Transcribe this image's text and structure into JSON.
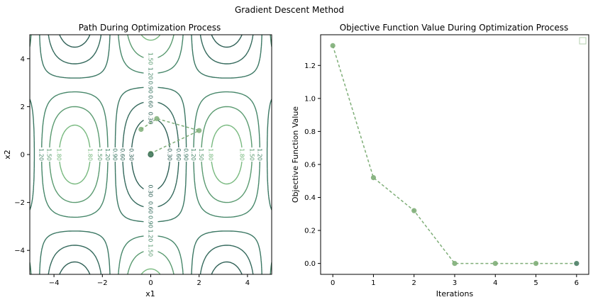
{
  "suptitle": "Gradient Descent Method",
  "chart_data": [
    {
      "type": "contour",
      "title": "Path During Optimization Process",
      "xlabel": "x1",
      "ylabel": "x2",
      "xlim": [
        -5,
        5
      ],
      "ylim": [
        -5,
        5
      ],
      "xticks": [
        "−4",
        "−2",
        "0",
        "2",
        "4"
      ],
      "yticks": [
        "−4",
        "−2",
        "0",
        "2",
        "4"
      ],
      "contour_levels": [
        "0.30",
        "0.60",
        "0.90",
        "1.20",
        "1.50",
        "1.80"
      ],
      "contour_colors": [
        "#2e5f55",
        "#34695c",
        "#3b7763",
        "#47876a",
        "#5a9a70",
        "#78b97f"
      ],
      "path_color": "#7fae78",
      "path": {
        "x": [
          -0.4,
          0.25,
          2.0,
          0.0,
          0.0,
          0.0,
          0.0
        ],
        "y": [
          1.05,
          1.5,
          1.0,
          0.05,
          0.0,
          0.0,
          0.0
        ]
      }
    },
    {
      "type": "line",
      "title": "Objective Function Value During Optimization Process",
      "xlabel": "Iterations",
      "ylabel": "Objective Function Value",
      "x": [
        0,
        1,
        2,
        3,
        4,
        5,
        6
      ],
      "values": [
        1.32,
        0.52,
        0.32,
        0.0,
        0.0,
        0.0,
        0.0
      ],
      "xlim": [
        -0.3,
        6.3
      ],
      "ylim": [
        -0.066,
        1.386
      ],
      "xticks": [
        "0",
        "1",
        "2",
        "3",
        "4",
        "5",
        "6"
      ],
      "yticks": [
        "0.0",
        "0.2",
        "0.4",
        "0.6",
        "0.8",
        "1.0",
        "1.2"
      ],
      "color": "#7fae78",
      "legend": "top-right"
    }
  ]
}
